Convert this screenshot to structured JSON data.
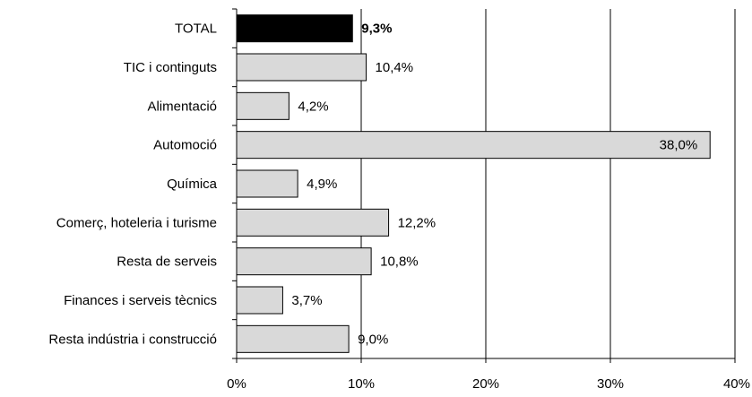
{
  "chart_data": {
    "type": "bar",
    "orientation": "horizontal",
    "title": "",
    "xlabel": "",
    "ylabel": "",
    "xlim": [
      0,
      40
    ],
    "grid": "vertical",
    "legend": "none",
    "categories": [
      "TOTAL",
      "TIC i continguts",
      "Alimentació",
      "Automoció",
      "Química",
      "Comerç, hoteleria i turisme",
      "Resta de serveis",
      "Finances i serveis tècnics",
      "Resta indústria i construcció"
    ],
    "values": [
      9.3,
      10.4,
      4.2,
      38.0,
      4.9,
      12.2,
      10.8,
      3.7,
      9.0
    ],
    "data_labels": [
      "9,3%",
      "10,4%",
      "4,2%",
      "38,0%",
      "4,9%",
      "12,2%",
      "10,8%",
      "3,7%",
      "9,0%"
    ],
    "ticks": [
      0,
      10,
      20,
      30,
      40
    ],
    "tick_labels": [
      "0%",
      "10%",
      "20%",
      "30%",
      "40%"
    ],
    "highlight_index": 0,
    "colors": {
      "bar": "#d9d9d9",
      "highlight_bar": "#000000",
      "bar_stroke": "#000000",
      "grid": "#000000",
      "background": "#ffffff"
    }
  }
}
